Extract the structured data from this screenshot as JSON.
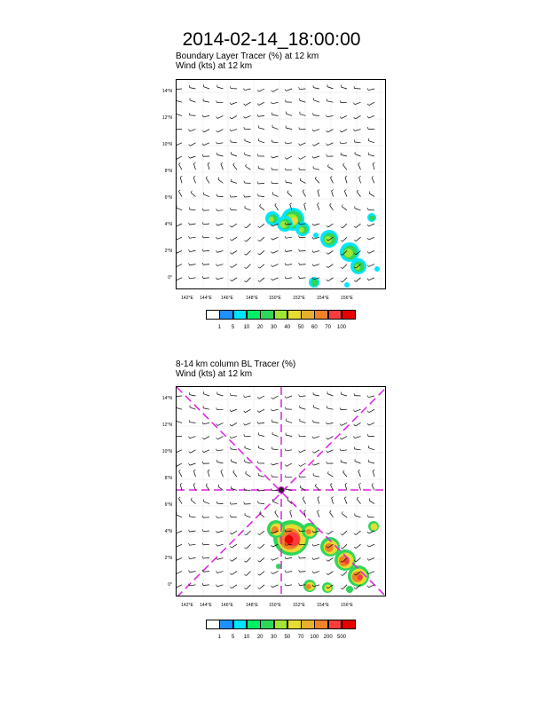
{
  "title": "2014-02-14_18:00:00",
  "panel1": {
    "line1": "Boundary Layer Tracer   (%)     at   12 km",
    "line2": "Wind   (kts)      at   12 km",
    "colorbar": {
      "labels": [
        "1",
        "5",
        "10",
        "20",
        "30",
        "40",
        "50",
        "60",
        "70",
        "100"
      ],
      "colors": [
        "#ffffff",
        "#1e90ff",
        "#00e5ff",
        "#00ee66",
        "#2fd65a",
        "#a0e632",
        "#e6dc32",
        "#e6af2d",
        "#f08228",
        "#fa3c3c",
        "#e60000"
      ]
    }
  },
  "panel2": {
    "line1": "8-14 km column BL Tracer   (%)",
    "line2": "Wind   (kts)      at   12 km",
    "colorbar": {
      "labels": [
        "1",
        "5",
        "10",
        "20",
        "30",
        "50",
        "70",
        "100",
        "200",
        "500"
      ],
      "colors": [
        "#ffffff",
        "#1e90ff",
        "#00e5ff",
        "#00ee66",
        "#2fd65a",
        "#a0e632",
        "#e6dc32",
        "#e6af2d",
        "#f08228",
        "#fa3c3c",
        "#e60000"
      ]
    }
  },
  "map_axes": {
    "lat_labels": [
      "14°N",
      "12°N",
      "10°N",
      "8°N",
      "6°N",
      "4°N",
      "2°N",
      "0°"
    ],
    "lon_labels": [
      "142°E",
      "144°E",
      "146°E",
      "148°E",
      "150°E",
      "152°E",
      "154°E",
      "156°E"
    ]
  }
}
